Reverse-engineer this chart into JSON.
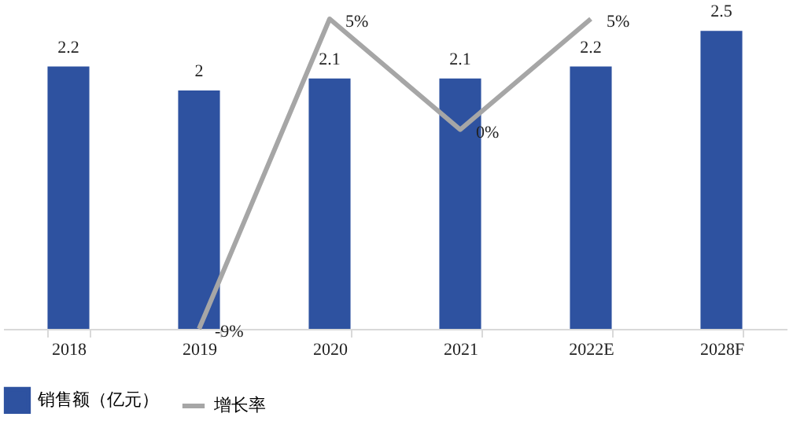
{
  "chart_data": {
    "type": "bar",
    "categories": [
      "2018",
      "2019",
      "2020",
      "2021",
      "2022E",
      "2028F"
    ],
    "series": [
      {
        "name": "销售额（亿元）",
        "color": "#2e52a0",
        "values": [
          2.2,
          2,
          2.1,
          2.1,
          2.2,
          2.5
        ]
      },
      {
        "name": "增长率",
        "type": "line",
        "axis": "y2",
        "color": "#a6a6a6",
        "values": [
          null,
          -9,
          5,
          0,
          5,
          null
        ],
        "value_labels": [
          null,
          "-9%",
          "5%",
          "0%",
          "5%",
          null
        ]
      }
    ],
    "data_labels": true,
    "tick_labels": "x",
    "legend": "bottom",
    "grid": false
  }
}
